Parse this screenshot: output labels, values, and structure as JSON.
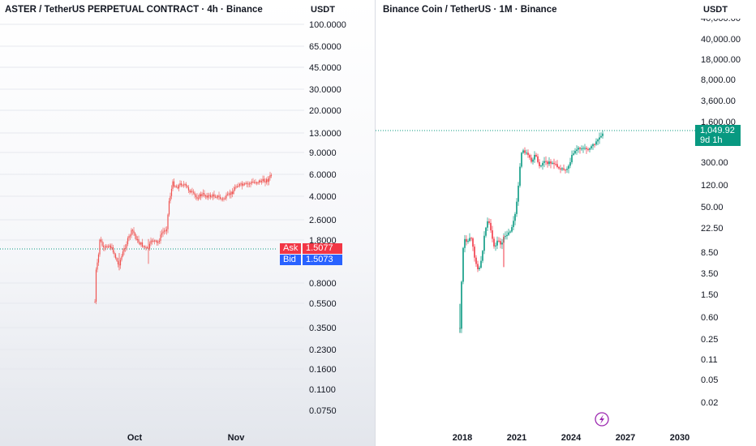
{
  "left_chart": {
    "title": "ASTER / TetherUS PERPETUAL CONTRACT · 4h · Binance",
    "currency": "USDT",
    "price_ticks": [
      "100.0000",
      "65.0000",
      "45.0000",
      "30.0000",
      "20.0000",
      "13.0000",
      "9.0000",
      "6.0000",
      "4.0000",
      "2.6000",
      "1.8000",
      "0.8000",
      "0.5500",
      "0.3500",
      "0.2300",
      "0.1600",
      "0.1100",
      "0.0750"
    ],
    "date_ticks": [
      "Oct",
      "Nov"
    ],
    "ask_label": "Ask",
    "ask_value": "1.5077",
    "bid_label": "Bid",
    "bid_value": "1.5073",
    "candle_color": "#ef5350",
    "ask_color": "#f23645",
    "bid_color": "#2962ff"
  },
  "right_chart": {
    "title": "Binance Coin / TetherUS · 1M · Binance",
    "currency": "USDT",
    "price_ticks": [
      "40,000.00",
      "18,000.00",
      "8,000.00",
      "3,600.00",
      "1,600.00",
      "300.00",
      "120.00",
      "50.00",
      "22.50",
      "8.50",
      "3.50",
      "1.50",
      "0.60",
      "0.25",
      "0.11",
      "0.05",
      "0.02"
    ],
    "year_ticks": [
      "2018",
      "2021",
      "2024",
      "2027",
      "2030"
    ],
    "last_price": "1,049.92",
    "countdown": "9d 1h",
    "up_color": "#089981",
    "down_color": "#f23645",
    "event_icon": "lightning-icon",
    "event_color": "#9c27b0"
  }
}
